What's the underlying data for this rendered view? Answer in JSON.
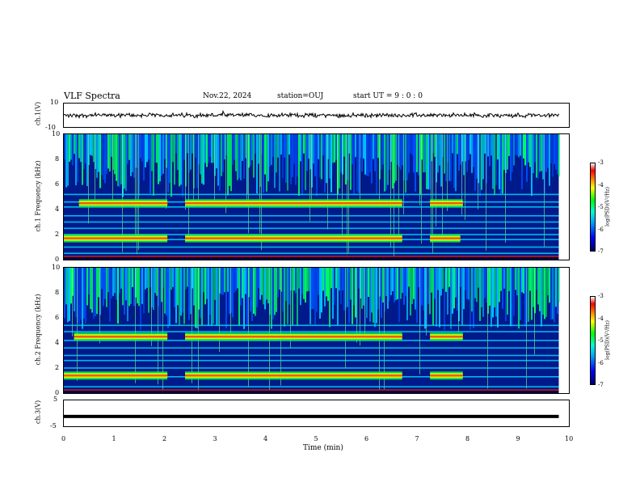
{
  "header": {
    "title": "VLF Spectra",
    "date": "Nov.22, 2024",
    "station": "station=OUJ",
    "start": "start UT =  9 : 0 : 0"
  },
  "colorbar": {
    "label": "log(PSD)(V²/Hz)",
    "ticks": [
      "-3",
      "-4",
      "-5",
      "-6",
      "-7"
    ]
  },
  "chart_data": [
    {
      "type": "line",
      "name": "waveform-ch1",
      "ylabel": "ch.1(V)",
      "ylim": [
        -10,
        10
      ],
      "yticks": [
        "10",
        "-10"
      ],
      "description_values": {
        "amplitude_typical": 1.5
      }
    },
    {
      "type": "heatmap",
      "name": "spectrogram-ch1",
      "ylabel": "ch.1 Frequency (kHz)",
      "ylim": [
        0,
        10
      ],
      "yticks": [
        "0",
        "2",
        "4",
        "6",
        "8",
        "10"
      ],
      "zrange": [
        -7,
        -3
      ],
      "bands_khz": [
        0.5,
        1.0,
        1.6,
        2.0,
        2.5,
        3.0,
        3.5,
        4.2,
        4.6,
        5.2
      ],
      "strong_segments": [
        {
          "band": 1.7,
          "x": [
            0,
            2.05
          ]
        },
        {
          "band": 1.7,
          "x": [
            2.4,
            6.7
          ]
        },
        {
          "band": 4.5,
          "x": [
            0.3,
            2.05
          ]
        },
        {
          "band": 4.5,
          "x": [
            2.4,
            6.7
          ]
        },
        {
          "band": 1.7,
          "x": [
            7.25,
            7.85
          ]
        },
        {
          "band": 4.5,
          "x": [
            7.25,
            7.9
          ]
        }
      ]
    },
    {
      "type": "heatmap",
      "name": "spectrogram-ch2",
      "ylabel": "ch.2 Frequency (kHz)",
      "ylim": [
        0,
        10
      ],
      "yticks": [
        "0",
        "2",
        "4",
        "6",
        "8",
        "10"
      ],
      "zrange": [
        -7,
        -3
      ],
      "bands_khz": [
        0.5,
        1.3,
        2.0,
        2.6,
        3.0,
        3.6,
        4.2,
        4.9,
        5.4
      ],
      "strong_segments": [
        {
          "band": 1.4,
          "x": [
            0,
            2.05
          ]
        },
        {
          "band": 1.4,
          "x": [
            2.4,
            6.7
          ]
        },
        {
          "band": 4.5,
          "x": [
            0.2,
            2.05
          ]
        },
        {
          "band": 4.5,
          "x": [
            2.4,
            6.7
          ]
        },
        {
          "band": 1.4,
          "x": [
            7.25,
            7.9
          ]
        },
        {
          "band": 4.5,
          "x": [
            7.25,
            7.9
          ]
        }
      ]
    },
    {
      "type": "line",
      "name": "waveform-ch3",
      "ylabel": "ch.3(V)",
      "ylim": [
        -5,
        5
      ],
      "yticks": [
        "5",
        "-5"
      ],
      "x": [
        0,
        9.8
      ],
      "y": [
        -1.2,
        -1.2
      ]
    }
  ],
  "xaxis": {
    "label": "Time (min)",
    "xlim": [
      0,
      10
    ],
    "ticks": [
      "0",
      "1",
      "2",
      "3",
      "4",
      "5",
      "6",
      "7",
      "8",
      "9",
      "10"
    ],
    "data_end": 9.8
  }
}
